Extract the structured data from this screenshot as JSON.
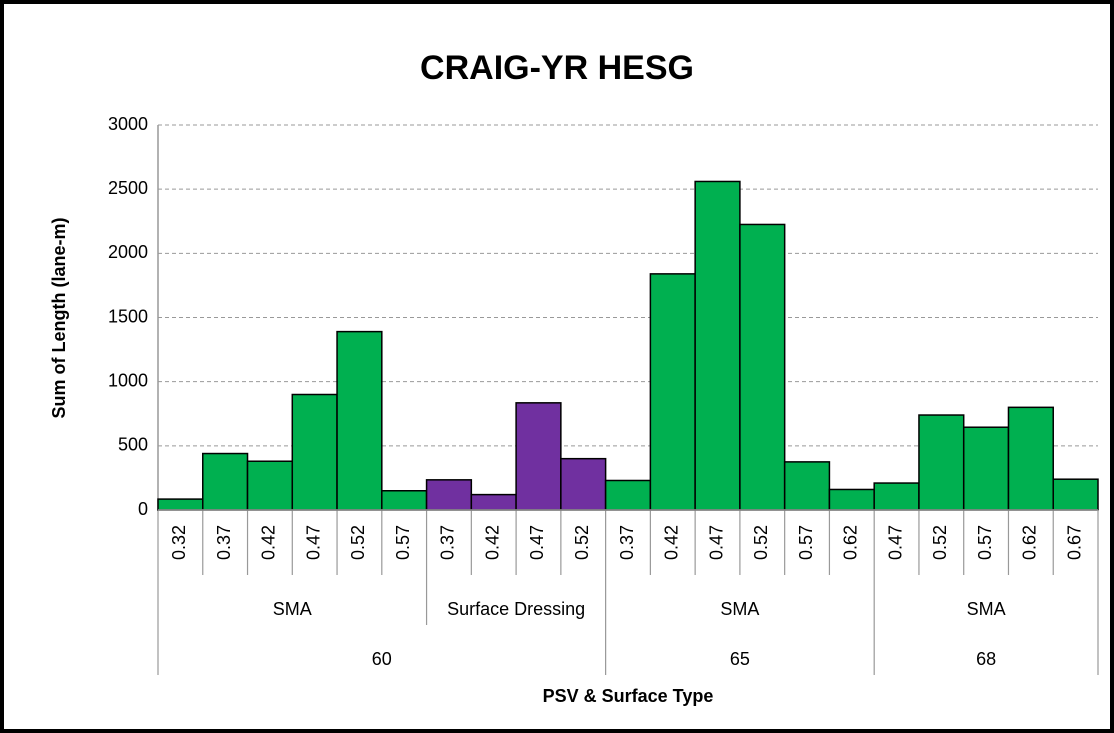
{
  "chart_data": {
    "type": "bar",
    "title": "CRAIG-YR HESG",
    "y_label": "Sum of Length (lane-m)",
    "x_label": "PSV & Surface Type",
    "ylim": [
      0,
      3000
    ],
    "yticks": [
      0,
      500,
      1000,
      1500,
      2000,
      2500,
      3000
    ],
    "grid": true,
    "groups": [
      {
        "label": "60",
        "subgroups": [
          {
            "label": "SMA",
            "color": "#00b050",
            "categories": [
              "0.32",
              "0.37",
              "0.42",
              "0.47",
              "0.52",
              "0.57"
            ],
            "values": [
              85,
              440,
              380,
              900,
              1390,
              150
            ]
          },
          {
            "label": "Surface Dressing",
            "color": "#7030a0",
            "categories": [
              "0.37",
              "0.42",
              "0.47",
              "0.52"
            ],
            "values": [
              235,
              120,
              835,
              400
            ]
          }
        ]
      },
      {
        "label": "65",
        "subgroups": [
          {
            "label": "SMA",
            "color": "#00b050",
            "categories": [
              "0.37",
              "0.42",
              "0.47",
              "0.52",
              "0.57",
              "0.62"
            ],
            "values": [
              230,
              1840,
              2560,
              2225,
              375,
              160
            ]
          }
        ]
      },
      {
        "label": "68",
        "subgroups": [
          {
            "label": "SMA",
            "color": "#00b050",
            "categories": [
              "0.47",
              "0.52",
              "0.57",
              "0.62",
              "0.67"
            ],
            "values": [
              210,
              740,
              645,
              800,
              240
            ]
          }
        ]
      }
    ]
  }
}
